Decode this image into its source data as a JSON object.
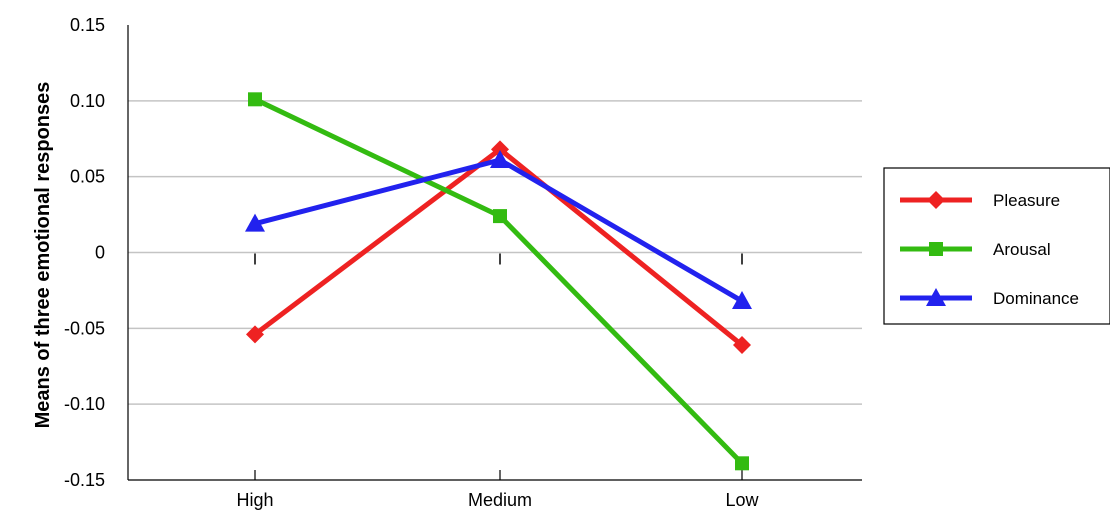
{
  "chart_data": {
    "type": "line",
    "ylabel": "Means of  three emotional responses",
    "xlabel": "",
    "categories": [
      "High",
      "Medium",
      "Low"
    ],
    "ylim": [
      -0.15,
      0.15
    ],
    "yticks": [
      "0.15",
      "0.10",
      "0.05",
      "0",
      "-0.05",
      "-0.10",
      "-0.15"
    ],
    "ytick_values": [
      0.15,
      0.1,
      0.05,
      0,
      -0.05,
      -0.1,
      -0.15
    ],
    "grid": true,
    "legend_position": "right",
    "series": [
      {
        "name": "Pleasure",
        "values": [
          -0.054,
          0.068,
          -0.061
        ],
        "color": "#ee2222",
        "marker": "diamond"
      },
      {
        "name": "Arousal",
        "values": [
          0.101,
          0.024,
          -0.139
        ],
        "color": "#33bb11",
        "marker": "square"
      },
      {
        "name": "Dominance",
        "values": [
          0.019,
          0.061,
          -0.032
        ],
        "color": "#2222ee",
        "marker": "triangle"
      }
    ]
  }
}
